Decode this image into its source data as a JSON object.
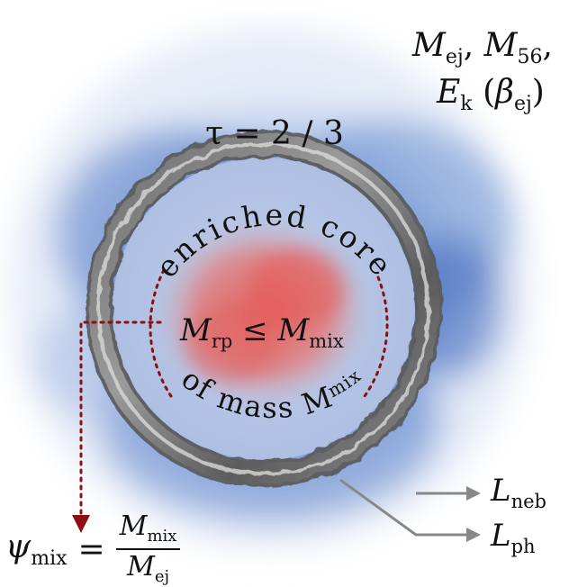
{
  "top_right": {
    "line1_m1": "M",
    "line1_m1_sub": "ej",
    "comma1": ",",
    "line1_m2": "M",
    "line1_m2_sub": "56",
    "comma2": ",",
    "line2_e": "E",
    "line2_e_sub": "k",
    "line2_open": "(",
    "line2_beta": "β",
    "line2_beta_sub": "ej",
    "line2_close": ")"
  },
  "tau_label": "τ = 2 / 3",
  "core_arc_top": "enriched core",
  "core_arc_bottom_text": "of mass M",
  "core_arc_bottom_sub": "mix",
  "center": {
    "m": "M",
    "m_sub": "rp",
    "leq": "≤",
    "m2": "M",
    "m2_sub": "mix"
  },
  "outputs": {
    "neb": "L",
    "neb_sub": "neb",
    "ph": "L",
    "ph_sub": "ph"
  },
  "psi": {
    "psi": "ψ",
    "psi_sub": "mix",
    "equals": "=",
    "num": "M",
    "num_sub": "mix",
    "den": "M",
    "den_sub": "ej"
  },
  "colors": {
    "ejecta_blue": "#3f6fc4",
    "core_red": "#e0605a",
    "photosphere_gray": "#7a7a7a",
    "arrow_red": "#8b1010",
    "arrow_gray": "#888888"
  }
}
